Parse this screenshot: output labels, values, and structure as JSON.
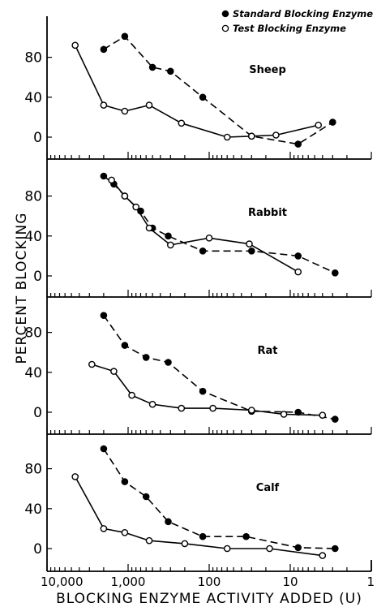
{
  "chart_data": {
    "type": "line",
    "xlabel": "BLOCKING ENZYME ACTIVITY ADDED (U)",
    "ylabel": "PERCENT BLOCKING",
    "x_scale": "log",
    "x_reversed": true,
    "xlim": [
      10000,
      1
    ],
    "ylim": [
      -10,
      110
    ],
    "x_tick_labels": [
      "10,000",
      "1,000",
      "100",
      "10",
      "1"
    ],
    "x_ticks": [
      10000,
      1000,
      100,
      10,
      1
    ],
    "y_tick_labels": [
      "0",
      "40",
      "80"
    ],
    "y_ticks": [
      0,
      40,
      80
    ],
    "legend": {
      "position": "top-right",
      "entries": [
        {
          "marker": "filled-circle",
          "label": "Standard Blocking Enzyme"
        },
        {
          "marker": "open-circle",
          "label": "Test Blocking Enzyme"
        }
      ]
    },
    "panels": [
      {
        "label": "Sheep",
        "series": [
          {
            "name": "Standard Blocking Enzyme",
            "marker": "filled",
            "x": [
              2000,
              1100,
              500,
              300,
              120,
              30,
              8,
              3
            ],
            "y": [
              88,
              101,
              70,
              66,
              40,
              1,
              -7,
              15
            ]
          },
          {
            "name": "Test Blocking Enzyme",
            "marker": "open",
            "x": [
              4500,
              2000,
              1100,
              550,
              220,
              60,
              30,
              15,
              4.5
            ],
            "y": [
              92,
              32,
              26,
              32,
              14,
              0,
              1,
              2,
              12
            ]
          }
        ]
      },
      {
        "label": "Rabbit",
        "series": [
          {
            "name": "Standard Blocking Enzyme",
            "marker": "filled",
            "x": [
              2000,
              1500,
              1100,
              700,
              500,
              320,
              120,
              30,
              8,
              2.8
            ],
            "y": [
              100,
              92,
              80,
              65,
              48,
              40,
              25,
              25,
              20,
              3
            ]
          },
          {
            "name": "Test Blocking Enzyme",
            "marker": "open",
            "x": [
              1600,
              1100,
              800,
              550,
              300,
              100,
              32,
              8
            ],
            "y": [
              96,
              80,
              69,
              48,
              31,
              38,
              32,
              4
            ]
          }
        ]
      },
      {
        "label": "Rat",
        "series": [
          {
            "name": "Standard Blocking Enzyme",
            "marker": "filled",
            "x": [
              2000,
              1100,
              600,
              320,
              120,
              30,
              8,
              2.8
            ],
            "y": [
              97,
              67,
              55,
              50,
              21,
              1,
              0,
              -7
            ]
          },
          {
            "name": "Test Blocking Enzyme",
            "marker": "open",
            "x": [
              2800,
              1500,
              900,
              500,
              220,
              90,
              30,
              12,
              4
            ],
            "y": [
              48,
              41,
              17,
              8,
              4,
              4,
              2,
              -2,
              -3
            ]
          }
        ]
      },
      {
        "label": "Calf",
        "series": [
          {
            "name": "Standard Blocking Enzyme",
            "marker": "filled",
            "x": [
              2000,
              1100,
              600,
              320,
              120,
              35,
              8,
              2.8
            ],
            "y": [
              100,
              67,
              52,
              27,
              12,
              12,
              1,
              0
            ]
          },
          {
            "name": "Test Blocking Enzyme",
            "marker": "open",
            "x": [
              4500,
              2000,
              1100,
              550,
              200,
              60,
              18,
              4
            ],
            "y": [
              72,
              20,
              16,
              8,
              5,
              0,
              0,
              -7
            ]
          }
        ]
      }
    ]
  }
}
